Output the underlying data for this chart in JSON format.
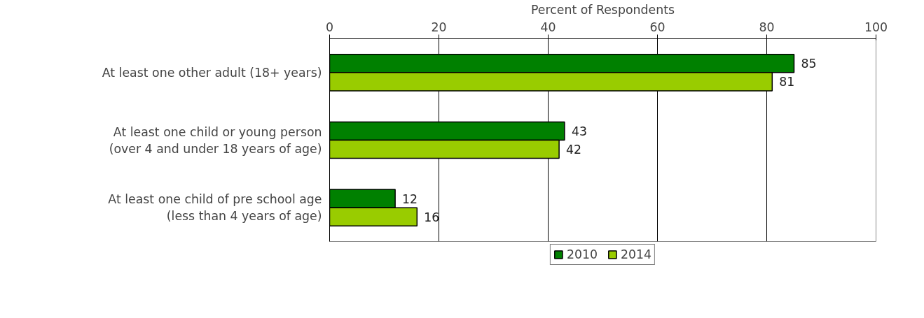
{
  "chart_data": {
    "type": "bar",
    "orientation": "horizontal",
    "xlabel": "Percent of Respondents",
    "categories": [
      "At least one other adult (18+ years)",
      "At least one child or young person\n(over 4 and under 18 years of age)",
      "At least one child of pre school age\n(less than 4 years of age)"
    ],
    "series": [
      {
        "name": "2010",
        "color": "#008000",
        "values": [
          85,
          43,
          12
        ]
      },
      {
        "name": "2014",
        "color": "#99cc00",
        "values": [
          81,
          42,
          16
        ]
      }
    ],
    "xlim": [
      0,
      100
    ],
    "xticks": [
      0,
      20,
      40,
      60,
      80,
      100
    ],
    "grid": "x",
    "legend": "bottom",
    "data_labels": true
  }
}
